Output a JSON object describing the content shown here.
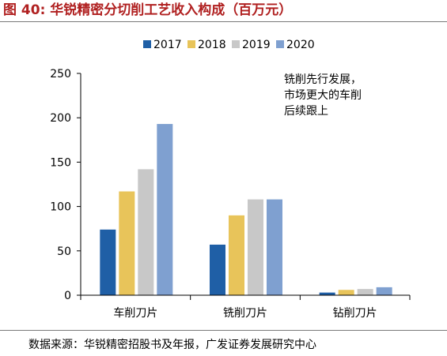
{
  "header": {
    "title": "图 40: 华锐精密分切削工艺收入构成（百万元）"
  },
  "footer": {
    "source": "数据来源：华锐精密招股书及年报，广发证券发展研究中心"
  },
  "chart_data": {
    "type": "bar",
    "title": "",
    "xlabel": "",
    "ylabel": "",
    "categories": [
      "车削刀片",
      "铣削刀片",
      "钻削刀片"
    ],
    "series": [
      {
        "name": "2017",
        "color": "#1f5fa6",
        "values": [
          74,
          57,
          3
        ]
      },
      {
        "name": "2018",
        "color": "#e8c45a",
        "values": [
          117,
          90,
          6
        ]
      },
      {
        "name": "2019",
        "color": "#c8c8c8",
        "values": [
          142,
          108,
          7
        ]
      },
      {
        "name": "2020",
        "color": "#7fa0d0",
        "values": [
          193,
          108,
          9
        ]
      }
    ],
    "ylim": [
      0,
      250
    ],
    "yticks": [
      0,
      50,
      100,
      150,
      200,
      250
    ],
    "grid": false,
    "legend_position": "top",
    "annotation": [
      "铣削先行发展，",
      "市场更大的车削",
      "后续跟上"
    ]
  }
}
